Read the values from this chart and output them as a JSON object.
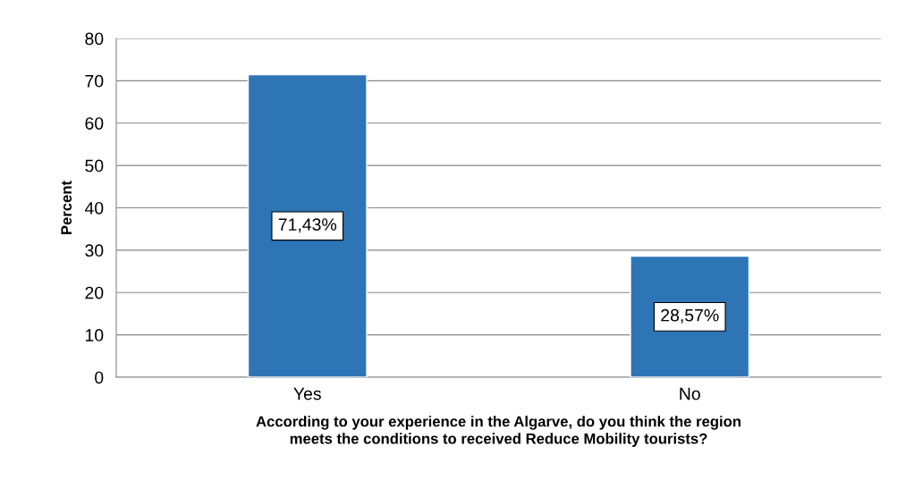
{
  "chart_data": {
    "type": "bar",
    "xlabel": "According to your experience in the Algarve, do you think the region\nmeets the conditions to received Reduce Mobility tourists?",
    "ylabel": "Percent",
    "categories": [
      "Yes",
      "No"
    ],
    "values": [
      71.43,
      28.57
    ],
    "value_labels": [
      "71,43%",
      "28,57%"
    ],
    "color": "#2e75b6",
    "ylim": [
      0,
      80
    ],
    "yticks": [
      0,
      10,
      20,
      30,
      40,
      50,
      60,
      70,
      80
    ],
    "grid": "y"
  }
}
